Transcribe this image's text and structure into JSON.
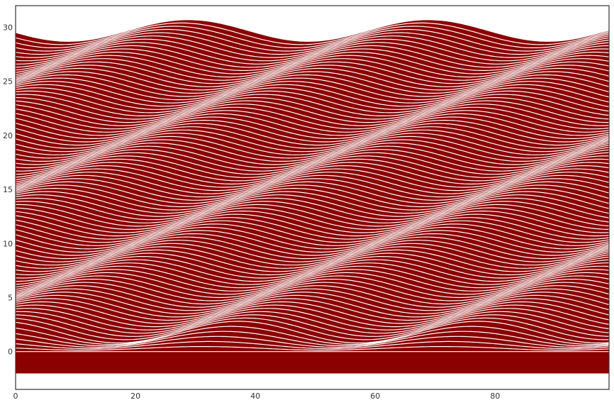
{
  "chart_data": {
    "type": "area",
    "description_of_marks": "stacked wave curves",
    "xlim": [
      0,
      99
    ],
    "ylim": [
      -3.5,
      32
    ],
    "x_ticks": [
      0,
      20,
      40,
      60,
      80
    ],
    "y_ticks": [
      0,
      5,
      10,
      15,
      20,
      25,
      30
    ],
    "x_tick_labels": [
      "0",
      "20",
      "40",
      "60",
      "80"
    ],
    "y_tick_labels": [
      "0",
      "5",
      "10",
      "15",
      "20",
      "25",
      "30"
    ],
    "title": "",
    "xlabel": "",
    "ylabel": "",
    "grid": false,
    "legend": "none",
    "curve_count": 100,
    "curve_spacing": 0.3,
    "base_fill_bottom": -2,
    "wave_amplitude": 1.0,
    "wave_period": 40,
    "wave_phase_x": 30,
    "wave_shift_per_curve": 1.2,
    "colors": {
      "fill": "#8b0000",
      "stroke": "#ffffff",
      "axes": "#333333",
      "background": "#ffffff"
    }
  }
}
